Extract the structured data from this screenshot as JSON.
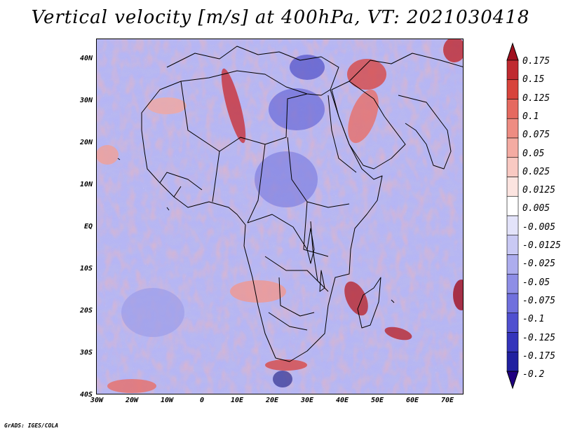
{
  "title": "Vertical velocity [m/s] at 400hPa, VT: 2021030418",
  "lat_labels": [
    "40N",
    "30N",
    "20N",
    "10N",
    "EQ",
    "10S",
    "20S",
    "30S",
    "40S"
  ],
  "lon_labels": [
    "30W",
    "20W",
    "10W",
    "0",
    "10E",
    "20E",
    "30E",
    "40E",
    "50E",
    "60E",
    "70E"
  ],
  "colorbar": {
    "levels": [
      "0.175",
      "0.15",
      "0.125",
      "0.1",
      "0.075",
      "0.05",
      "0.025",
      "0.0125",
      "0.005",
      "-0.005",
      "-0.0125",
      "-0.025",
      "-0.05",
      "-0.075",
      "-0.1",
      "-0.125",
      "-0.175",
      "-0.2"
    ],
    "colors": [
      "#a0101e",
      "#c02a30",
      "#d8443c",
      "#e56a60",
      "#ee8c82",
      "#f4aba2",
      "#f9c9c2",
      "#fce4e0",
      "#ffffff",
      "#e3e3fa",
      "#c9c9f4",
      "#adadee",
      "#8e8ee6",
      "#7070dd",
      "#5050d0",
      "#3434bb",
      "#2020a0",
      "#1a1a80"
    ],
    "top_arrow_color": "#a0101e",
    "bottom_arrow_color": "#200080"
  },
  "credit": "GrADS: IGES/COLA"
}
